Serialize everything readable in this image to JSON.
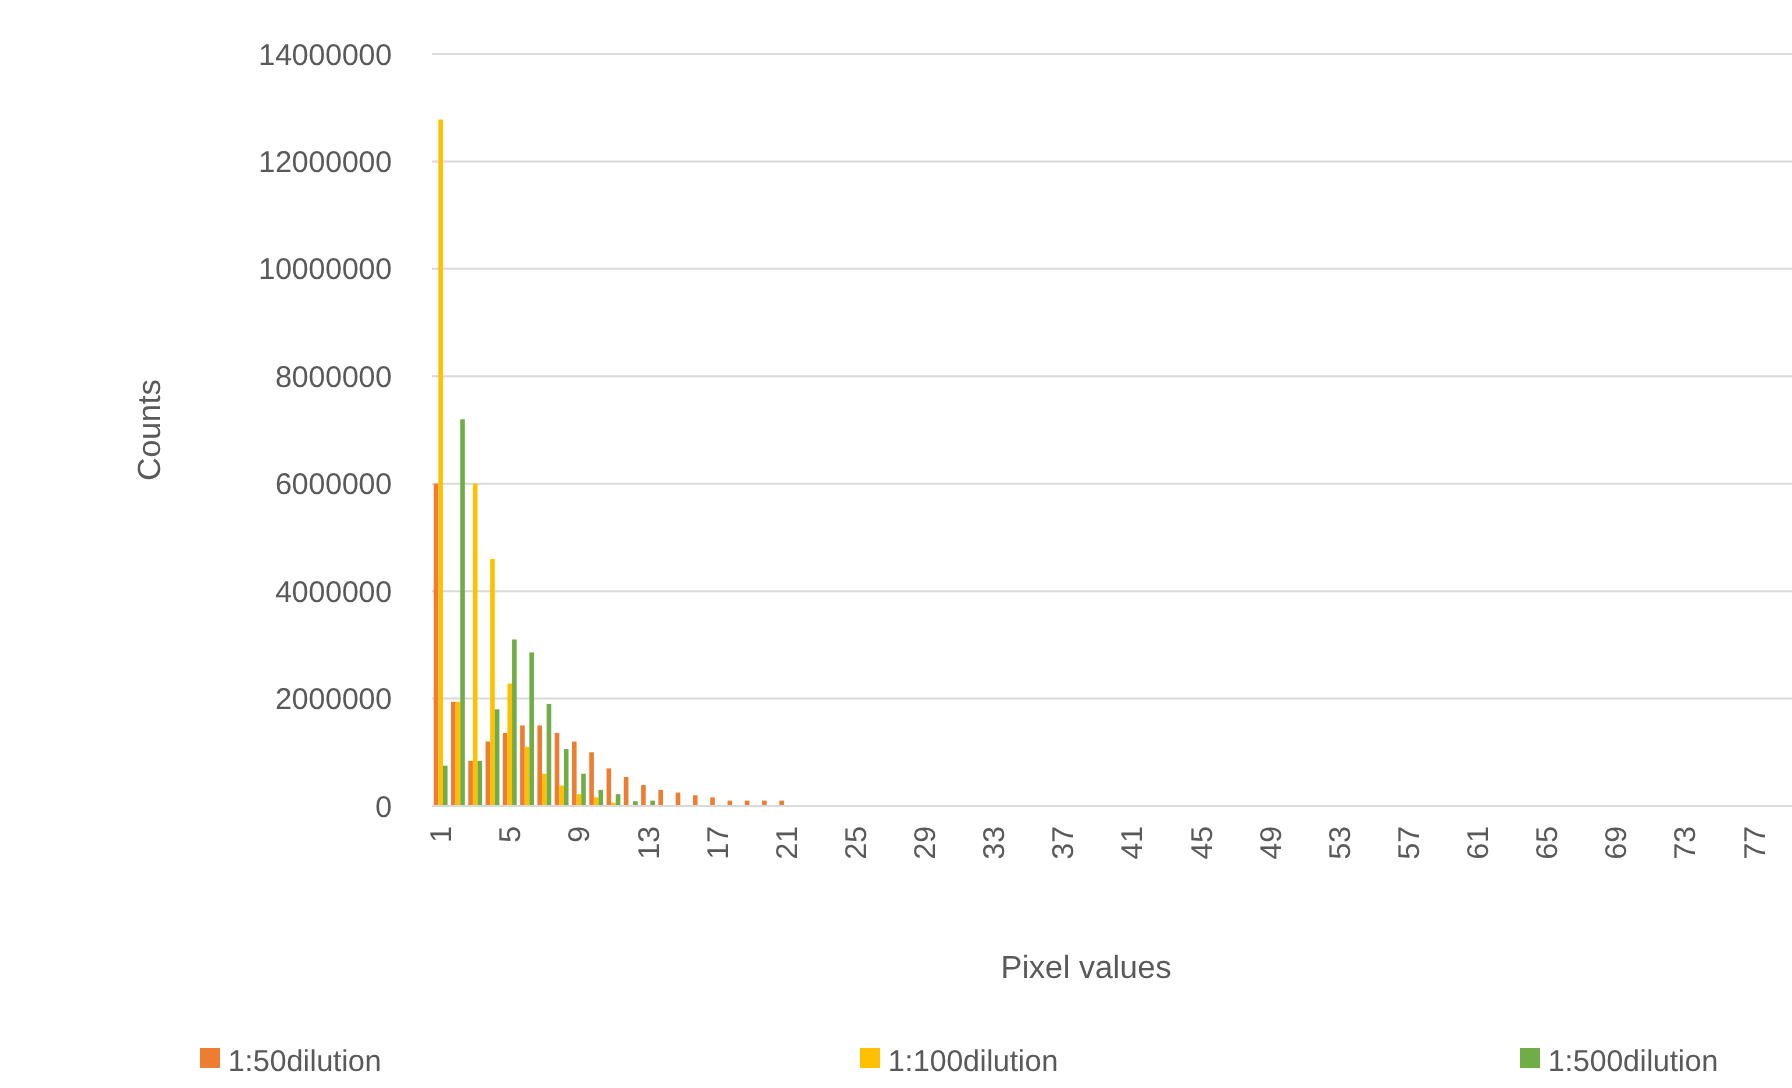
{
  "chart_data": {
    "type": "bar",
    "xlabel": "Pixel values",
    "ylabel": "Counts",
    "categories": [
      "1",
      null,
      null,
      null,
      "5",
      null,
      null,
      null,
      "9",
      null,
      null,
      null,
      "13",
      null,
      null,
      null,
      "17",
      null,
      null,
      null,
      "21",
      null,
      null,
      null,
      "25",
      null,
      null,
      null,
      "29",
      null,
      null,
      null,
      "33",
      null,
      null,
      null,
      "37",
      null,
      null,
      null,
      "41",
      null,
      null,
      null,
      "45",
      null,
      null,
      null,
      "49",
      null,
      null,
      null,
      "53",
      null,
      null,
      null,
      "57",
      null,
      null,
      null,
      "61",
      null,
      null,
      null,
      "65",
      null,
      null,
      null,
      "69",
      null,
      null,
      null,
      "73",
      null,
      null,
      null,
      "77",
      null
    ],
    "series": [
      {
        "name": "1:50dilution",
        "color": "#ed7d31",
        "values": [
          6000000,
          1940000,
          840000,
          1200000,
          1360000,
          1500000,
          1500000,
          1360000,
          1200000,
          1000000,
          700000,
          540000,
          390000,
          300000,
          250000,
          200000,
          160000,
          100000,
          100000,
          100000,
          100000,
          0,
          0,
          0,
          0,
          0,
          0,
          0,
          0,
          0,
          0,
          0,
          0,
          0,
          0,
          0,
          0,
          0,
          0,
          0,
          0,
          0,
          0,
          0,
          0,
          0,
          0,
          0,
          0,
          0,
          0,
          0,
          0,
          0,
          0,
          0,
          0,
          0,
          0,
          0,
          0,
          0,
          0,
          0,
          0,
          0,
          0,
          0,
          0,
          0,
          0,
          0,
          0,
          0,
          0,
          0,
          0,
          0
        ]
      },
      {
        "name": "1:100dilution",
        "color": "#ffc000",
        "values": [
          12780000,
          1940000,
          6000000,
          4600000,
          2280000,
          1100000,
          600000,
          380000,
          220000,
          160000,
          60000,
          null,
          0,
          0,
          0,
          0,
          0,
          0,
          0,
          0,
          0,
          0,
          0,
          0,
          0,
          0,
          0,
          0,
          0,
          0,
          0,
          0,
          0,
          0,
          0,
          0,
          0,
          0,
          0,
          0,
          0,
          0,
          0,
          0,
          0,
          0,
          0,
          0,
          0,
          0,
          0,
          0,
          0,
          0,
          0,
          0,
          0,
          0,
          0,
          0,
          0,
          0,
          0,
          0,
          0,
          0,
          0,
          0,
          0,
          0,
          0,
          0,
          0,
          0,
          0,
          0,
          0,
          0
        ]
      },
      {
        "name": "1:500dilution",
        "color": "#70ad47",
        "values": [
          750000,
          7200000,
          840000,
          1800000,
          3100000,
          2860000,
          1900000,
          1060000,
          600000,
          300000,
          220000,
          90000,
          100000,
          0,
          0,
          0,
          0,
          0,
          0,
          0,
          0,
          0,
          0,
          0,
          0,
          0,
          0,
          0,
          0,
          0,
          0,
          0,
          0,
          0,
          0,
          0,
          0,
          0,
          0,
          0,
          0,
          0,
          0,
          0,
          0,
          0,
          0,
          0,
          0,
          0,
          0,
          0,
          0,
          0,
          0,
          0,
          0,
          0,
          0,
          0,
          0,
          0,
          0,
          0,
          0,
          0,
          0,
          0,
          0,
          0,
          0,
          0,
          0,
          0,
          0,
          0,
          0,
          0
        ]
      }
    ],
    "ylim": [
      0,
      14000000
    ],
    "yticks": [
      0,
      2000000,
      4000000,
      6000000,
      8000000,
      10000000,
      12000000,
      14000000
    ],
    "grid": "y",
    "legend": "bottom"
  }
}
